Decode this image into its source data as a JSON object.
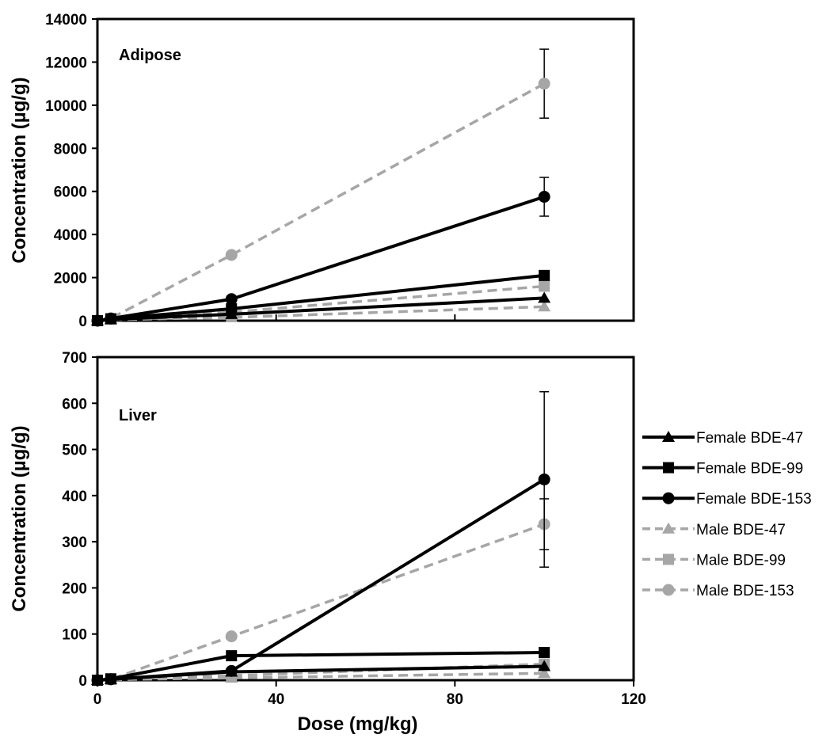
{
  "chart_data": [
    {
      "type": "line",
      "panel_label": "Adipose",
      "ylabel": "Concentration (µg/g)",
      "xlabel": "",
      "xlim": [
        0,
        120
      ],
      "ylim": [
        0,
        14000
      ],
      "x_ticks": [
        "0",
        "40",
        "80",
        "120"
      ],
      "y_ticks": [
        "0",
        "2000",
        "4000",
        "6000",
        "8000",
        "10000",
        "12000",
        "14000"
      ],
      "x_tick_labels_visible": false,
      "series": [
        {
          "name": "Female BDE-47",
          "x": [
            0,
            3,
            30,
            100
          ],
          "y": [
            0,
            60,
            300,
            1050
          ],
          "marker": "triangle",
          "color": "#000000",
          "dashed": false
        },
        {
          "name": "Female BDE-99",
          "x": [
            0,
            3,
            30,
            100
          ],
          "y": [
            0,
            90,
            550,
            2100
          ],
          "marker": "square",
          "color": "#000000",
          "dashed": false
        },
        {
          "name": "Female BDE-153",
          "x": [
            0,
            3,
            30,
            100
          ],
          "y": [
            0,
            100,
            1000,
            5750
          ],
          "marker": "circle",
          "color": "#000000",
          "dashed": false,
          "error": [
            0,
            0,
            150,
            900
          ]
        },
        {
          "name": "Male BDE-47",
          "x": [
            0,
            3,
            30,
            100
          ],
          "y": [
            0,
            40,
            150,
            650
          ],
          "marker": "triangle",
          "color": "#a6a6a6",
          "dashed": true
        },
        {
          "name": "Male BDE-99",
          "x": [
            0,
            3,
            30,
            100
          ],
          "y": [
            0,
            70,
            400,
            1600
          ],
          "marker": "square",
          "color": "#a6a6a6",
          "dashed": true
        },
        {
          "name": "Male BDE-153",
          "x": [
            0,
            3,
            30,
            100
          ],
          "y": [
            0,
            110,
            3050,
            11000
          ],
          "marker": "circle",
          "color": "#a6a6a6",
          "dashed": true,
          "error": [
            0,
            0,
            0,
            1600
          ]
        }
      ]
    },
    {
      "type": "line",
      "panel_label": "Liver",
      "ylabel": "Concentration (µg/g)",
      "xlabel": "Dose (mg/kg)",
      "xlim": [
        0,
        120
      ],
      "ylim": [
        0,
        700
      ],
      "x_ticks": [
        "0",
        "40",
        "80",
        "120"
      ],
      "y_ticks": [
        "0",
        "100",
        "200",
        "300",
        "400",
        "500",
        "600",
        "700"
      ],
      "x_tick_labels_visible": true,
      "series": [
        {
          "name": "Female BDE-47",
          "x": [
            0,
            3,
            30,
            100
          ],
          "y": [
            0,
            2,
            18,
            30
          ],
          "marker": "triangle",
          "color": "#000000",
          "dashed": false
        },
        {
          "name": "Female BDE-99",
          "x": [
            0,
            3,
            30,
            100
          ],
          "y": [
            0,
            3,
            53,
            60
          ],
          "marker": "square",
          "color": "#000000",
          "dashed": false
        },
        {
          "name": "Female BDE-153",
          "x": [
            0,
            3,
            30,
            100
          ],
          "y": [
            0,
            2,
            20,
            435
          ],
          "marker": "circle",
          "color": "#000000",
          "dashed": false,
          "error": [
            0,
            0,
            0,
            190
          ]
        },
        {
          "name": "Male BDE-47",
          "x": [
            0,
            3,
            30,
            100
          ],
          "y": [
            0,
            1,
            5,
            15
          ],
          "marker": "triangle",
          "color": "#a6a6a6",
          "dashed": true
        },
        {
          "name": "Male BDE-99",
          "x": [
            0,
            3,
            30,
            100
          ],
          "y": [
            0,
            2,
            10,
            35
          ],
          "marker": "square",
          "color": "#a6a6a6",
          "dashed": true
        },
        {
          "name": "Male BDE-153",
          "x": [
            0,
            3,
            30,
            100
          ],
          "y": [
            0,
            2,
            95,
            338
          ],
          "marker": "circle",
          "color": "#a6a6a6",
          "dashed": true,
          "error": [
            0,
            0,
            0,
            55
          ]
        }
      ]
    }
  ],
  "legend": {
    "entries": [
      {
        "label": "Female BDE-47",
        "marker": "triangle",
        "color": "#000000",
        "dashed": false
      },
      {
        "label": "Female BDE-99",
        "marker": "square",
        "color": "#000000",
        "dashed": false
      },
      {
        "label": "Female BDE-153",
        "marker": "circle",
        "color": "#000000",
        "dashed": false
      },
      {
        "label": "Male BDE-47",
        "marker": "triangle",
        "color": "#a6a6a6",
        "dashed": true
      },
      {
        "label": "Male BDE-99",
        "marker": "square",
        "color": "#a6a6a6",
        "dashed": true
      },
      {
        "label": "Male BDE-153",
        "marker": "circle",
        "color": "#a6a6a6",
        "dashed": true
      }
    ]
  }
}
